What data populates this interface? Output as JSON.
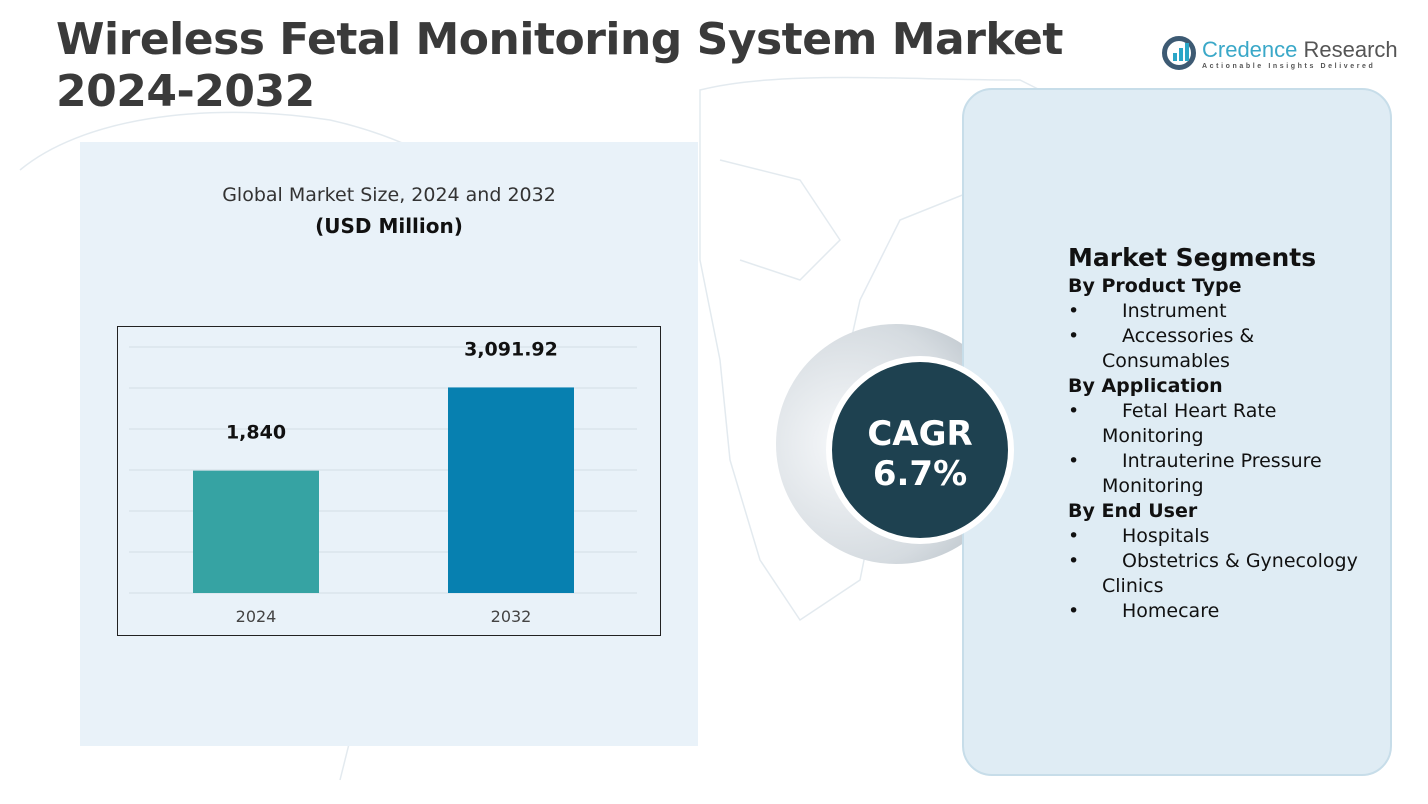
{
  "title_line1": "Wireless Fetal Monitoring System Market",
  "title_line2": "2024-2032",
  "logo": {
    "name_a": "Credence",
    "name_b": " Research",
    "tagline": "Actionable Insights Delivered"
  },
  "chart_data": {
    "type": "bar",
    "title": "Global Market Size, 2024 and 2032",
    "subtitle": "(USD Million)",
    "categories": [
      "2024",
      "2032"
    ],
    "values": [
      1840,
      3091.92
    ],
    "data_labels": [
      "1,840",
      "3,091.92"
    ],
    "colors": [
      "#36a3a3",
      "#0780b0"
    ],
    "grid": true,
    "ylim": [
      0,
      3700
    ]
  },
  "cagr": {
    "label": "CAGR",
    "value": "6.7%"
  },
  "segments": {
    "heading": "Market Segments",
    "groups": [
      {
        "title": "By Product Type",
        "items": [
          [
            "Instrument"
          ],
          [
            "Accessories &",
            "Consumables"
          ]
        ]
      },
      {
        "title": "By Application",
        "items": [
          [
            "Fetal Heart Rate",
            "Monitoring"
          ],
          [
            "Intrauterine Pressure",
            "Monitoring"
          ]
        ]
      },
      {
        "title": "By End User",
        "items": [
          [
            "Hospitals"
          ],
          [
            "Obstetrics & Gynecology",
            "Clinics"
          ],
          [
            "Homecare"
          ]
        ]
      }
    ]
  }
}
